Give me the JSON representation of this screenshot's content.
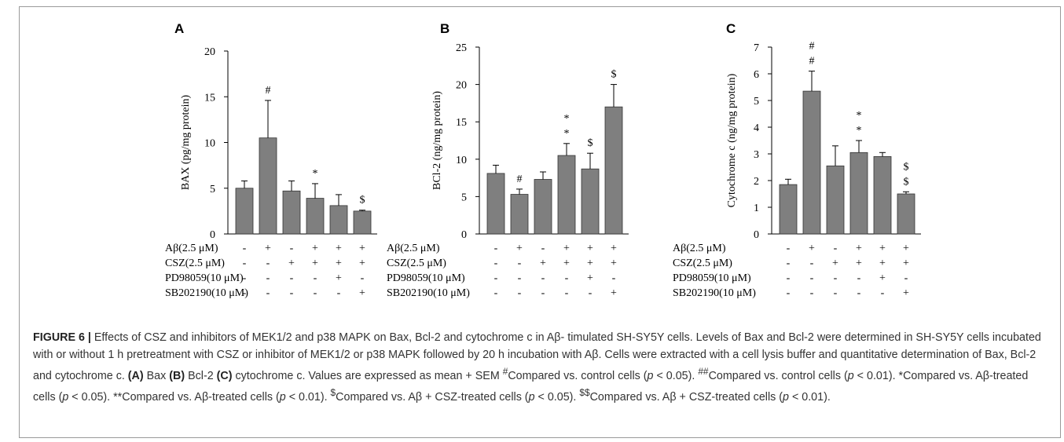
{
  "figure": {
    "label": "FIGURE 6 |",
    "caption_html": " Effects of CSZ and inhibitors of MEK1/2 and p38 MAPK on Bax, Bcl-2 and cytochrome c in Aβ- timulated SH-SY5Y cells. Levels of Bax and Bcl-2 were determined in SH-SY5Y cells incubated with or without 1 h pretreatment with CSZ or inhibitor of MEK1/2 or p38 MAPK followed by 20 h incubation with Aβ. Cells were extracted with a cell lysis buffer and quantitative determination of Bax, Bcl-2 and cytochrome c. <b>(A)</b> Bax <b>(B)</b> Bcl-2 <b>(C)</b> cytochrome c. Values are expressed as mean + SEM <sup>#</sup>Compared vs. control cells (<i>p</i> &lt; 0.05). <sup>##</sup>Compared vs. control cells (<i>p</i> &lt; 0.01). *Compared vs. Aβ-treated cells (<i>p</i> &lt; 0.05). **Compared vs. Aβ-treated cells (<i>p</i> &lt; 0.01). <sup>$</sup>Compared vs. Aβ + CSZ-treated cells (<i>p</i> &lt; 0.05). <sup>$$</sup>Compared vs. Aβ + CSZ-treated cells (<i>p</i> &lt; 0.01)."
  },
  "chart_data": [
    {
      "type": "bar",
      "panel": "A",
      "ylabel": "BAX (pg/mg protein)",
      "ylim": [
        0,
        20
      ],
      "yticks": [
        0,
        5,
        10,
        15,
        20
      ],
      "values": [
        5.0,
        10.5,
        4.7,
        3.9,
        3.1,
        2.5
      ],
      "errors": [
        0.8,
        4.1,
        1.1,
        1.6,
        1.2,
        0.1
      ],
      "annotations": [
        "",
        "#",
        "",
        "*",
        "",
        "$"
      ],
      "bar_color": "#7f7f7f",
      "treatments": [
        {
          "label": "Aβ(2.5 μM)",
          "signs": [
            "-",
            "+",
            "-",
            "+",
            "+",
            "+"
          ]
        },
        {
          "label": "CSZ(2.5 μM)",
          "signs": [
            "-",
            "-",
            "+",
            "+",
            "+",
            "+"
          ]
        },
        {
          "label": "PD98059(10 μM)",
          "signs": [
            "-",
            "-",
            "-",
            "-",
            "+",
            "-"
          ]
        },
        {
          "label": "SB202190(10 μM)",
          "signs": [
            "-",
            "-",
            "-",
            "-",
            "-",
            "+"
          ]
        }
      ]
    },
    {
      "type": "bar",
      "panel": "B",
      "ylabel": "BCl-2 (ng/mg protein)",
      "ylim": [
        0,
        25
      ],
      "yticks": [
        0,
        5,
        10,
        15,
        20,
        25
      ],
      "values": [
        8.1,
        5.3,
        7.3,
        10.5,
        8.7,
        17.0
      ],
      "errors": [
        1.1,
        0.7,
        1.0,
        1.6,
        2.1,
        3.0
      ],
      "annotations": [
        "",
        "#",
        "",
        "*\n*",
        "$",
        "$"
      ],
      "bar_color": "#7f7f7f",
      "treatments": [
        {
          "label": "Aβ(2.5 μM)",
          "signs": [
            "-",
            "+",
            "-",
            "+",
            "+",
            "+"
          ]
        },
        {
          "label": "CSZ(2.5 μM)",
          "signs": [
            "-",
            "-",
            "+",
            "+",
            "+",
            "+"
          ]
        },
        {
          "label": "PD98059(10 μM)",
          "signs": [
            "-",
            "-",
            "-",
            "-",
            "+",
            "-"
          ]
        },
        {
          "label": "SB202190(10 μM)",
          "signs": [
            "-",
            "-",
            "-",
            "-",
            "-",
            "+"
          ]
        }
      ]
    },
    {
      "type": "bar",
      "panel": "C",
      "ylabel": "Cytochrome c (ng/mg protein)",
      "ylim": [
        0,
        7
      ],
      "yticks": [
        0,
        1,
        2,
        3,
        4,
        5,
        6,
        7
      ],
      "values": [
        1.85,
        5.35,
        2.55,
        3.05,
        2.9,
        1.5
      ],
      "errors": [
        0.2,
        0.75,
        0.75,
        0.45,
        0.15,
        0.08
      ],
      "annotations": [
        "",
        "#\n#",
        "",
        "*\n*",
        "",
        "$\n$"
      ],
      "bar_color": "#7f7f7f",
      "treatments": [
        {
          "label": "Aβ(2.5 μM)",
          "signs": [
            "-",
            "+",
            "-",
            "+",
            "+",
            "+"
          ]
        },
        {
          "label": "CSZ(2.5 μM)",
          "signs": [
            "-",
            "-",
            "+",
            "+",
            "+",
            "+"
          ]
        },
        {
          "label": "PD98059(10 μM)",
          "signs": [
            "-",
            "-",
            "-",
            "-",
            "+",
            "-"
          ]
        },
        {
          "label": "SB202190(10 μM)",
          "signs": [
            "-",
            "-",
            "-",
            "-",
            "-",
            "+"
          ]
        }
      ]
    }
  ]
}
